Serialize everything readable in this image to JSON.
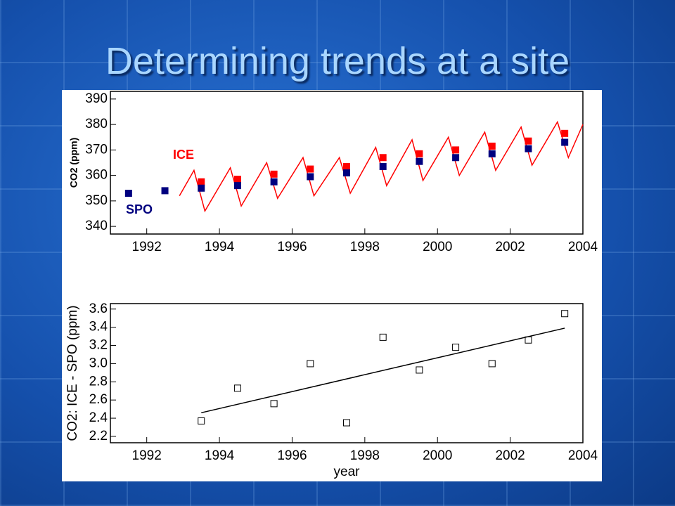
{
  "title": "Determining trends at a site",
  "chart_data": [
    {
      "type": "line",
      "ylabel": "CO2 (ppm)",
      "xlim": [
        1991,
        2004
      ],
      "xticks": [
        1992,
        1994,
        1996,
        1998,
        2000,
        2002,
        2004
      ],
      "ylim": [
        337,
        393
      ],
      "yticks": [
        340,
        350,
        360,
        370,
        380,
        390
      ],
      "series": [
        {
          "name": "ICE",
          "color": "#ff0000",
          "mode": "markers",
          "x": [
            1993.5,
            1994.5,
            1995.5,
            1996.5,
            1997.5,
            1998.5,
            1999.5,
            2000.5,
            2001.5,
            2002.5,
            2003.5
          ],
          "values": [
            357.5,
            358.5,
            360.5,
            362.5,
            363.5,
            367,
            368.5,
            370,
            371.5,
            373.5,
            376.5
          ]
        },
        {
          "color": "#ff0000",
          "mode": "line",
          "x": [
            1992.9,
            1993.3,
            1993.6,
            1994.3,
            1994.6,
            1995.3,
            1995.6,
            1996.3,
            1996.6,
            1997.3,
            1997.6,
            1998.3,
            1998.6,
            1999.3,
            1999.6,
            2000.3,
            2000.6,
            2001.3,
            2001.6,
            2002.3,
            2002.6,
            2003.3,
            2003.6,
            2004
          ],
          "values": [
            352,
            362,
            346,
            363,
            348,
            365,
            351,
            367,
            352,
            367,
            353,
            371,
            356,
            374,
            358,
            375,
            360,
            377,
            362,
            379,
            364,
            381,
            367,
            380
          ]
        },
        {
          "name": "SPO",
          "color": "#00007f",
          "mode": "markers",
          "x": [
            1991.5,
            1992.5,
            1993.5,
            1994.5,
            1995.5,
            1996.5,
            1997.5,
            1998.5,
            1999.5,
            2000.5,
            2001.5,
            2002.5,
            2003.5
          ],
          "values": [
            353,
            354,
            355,
            356,
            357.5,
            359.5,
            361,
            363.5,
            365.5,
            367,
            368.5,
            370.5,
            373
          ]
        }
      ]
    },
    {
      "type": "scatter",
      "ylabel": "CO2: ICE - SPO (ppm)",
      "xlabel": "year",
      "xlim": [
        1991,
        2004
      ],
      "xticks": [
        1992,
        1994,
        1996,
        1998,
        2000,
        2002,
        2004
      ],
      "ylim": [
        2.13,
        3.66
      ],
      "yticks": [
        2.2,
        2.4,
        2.6,
        2.8,
        {
          "value": 3,
          "label": "3.0"
        },
        3.2,
        3.4,
        3.6
      ],
      "series": [
        {
          "color": "#000000",
          "mode": "hollow",
          "x": [
            1993.5,
            1994.5,
            1995.5,
            1996.5,
            1997.5,
            1998.5,
            1999.5,
            2000.5,
            2001.5,
            2002.5,
            2003.5
          ],
          "values": [
            2.37,
            2.73,
            2.56,
            3.0,
            2.35,
            3.29,
            2.93,
            3.18,
            3.0,
            3.26,
            3.55
          ]
        },
        {
          "color": "#000000",
          "mode": "line",
          "x": [
            1993.5,
            2003.5
          ],
          "values": [
            2.46,
            3.39
          ]
        }
      ]
    }
  ]
}
